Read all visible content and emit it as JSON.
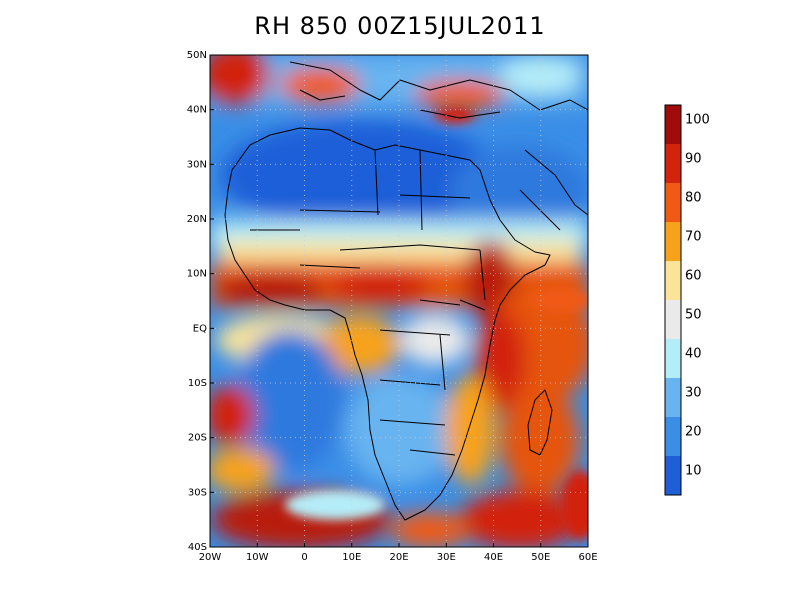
{
  "title": "RH 850 00Z15JUL2011",
  "lat_labels": [
    "50N",
    "40N",
    "30N",
    "20N",
    "10N",
    "EQ",
    "10S",
    "20S",
    "30S",
    "40S"
  ],
  "lon_labels": [
    "20W",
    "10W",
    "0",
    "10E",
    "20E",
    "30E",
    "40E",
    "50E",
    "60E"
  ],
  "colorbar": {
    "labels": [
      "10",
      "20",
      "30",
      "40",
      "50",
      "60",
      "70",
      "80",
      "90",
      "100"
    ],
    "colors": [
      "#1e5fd8",
      "#3a8ee6",
      "#68b4f0",
      "#b4ecf8",
      "#eaeaea",
      "#fbe49a",
      "#f7a21b",
      "#f05a14",
      "#d2240c",
      "#a00c0c"
    ]
  },
  "colors": {
    "ocean_dry": "#2f79de",
    "sahara_dry": "#3a8ee6",
    "moist": "#e6550f",
    "very_moist": "#b81a0c",
    "mid": "#fbe49a",
    "border": "#000000"
  }
}
